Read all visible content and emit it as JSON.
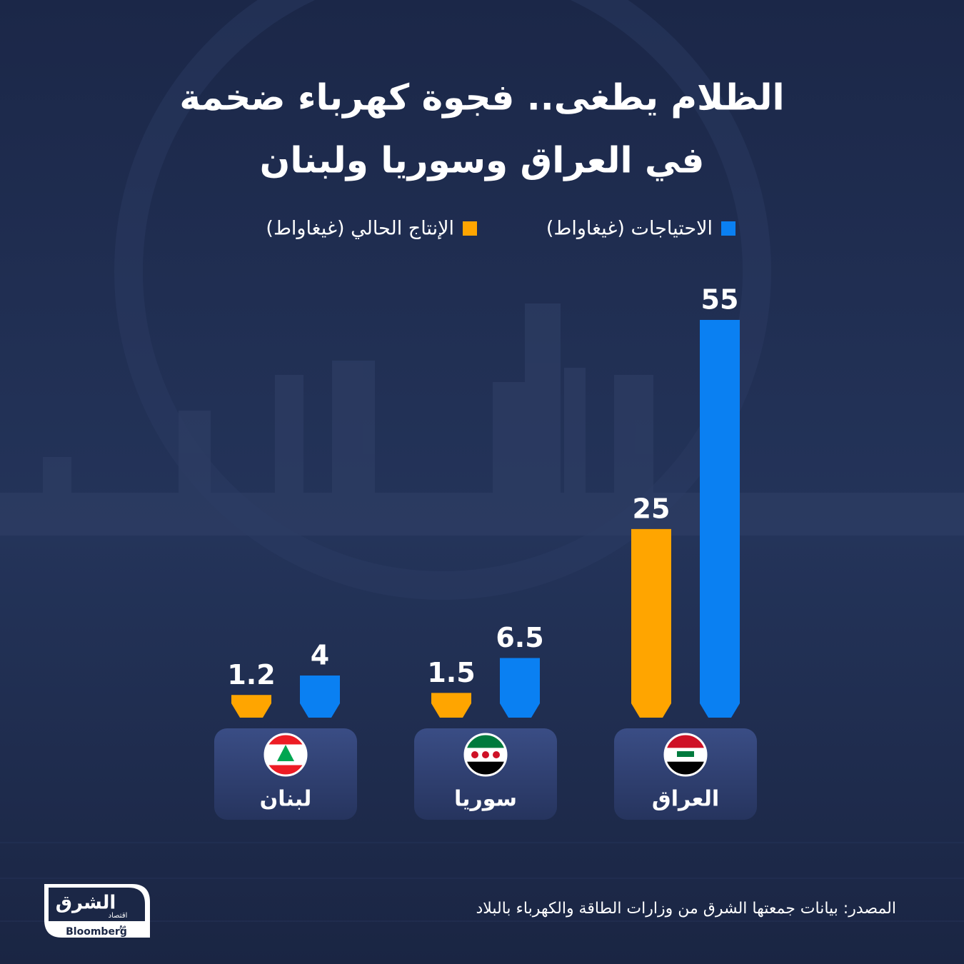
{
  "chart_data": {
    "type": "bar",
    "title": [
      "الظلام يطغى.. فجوة كهرباء ضخمة",
      "في العراق وسوريا ولبنان"
    ],
    "categories": [
      "العراق",
      "سوريا",
      "لبنان"
    ],
    "series": [
      {
        "name": "الاحتياجات (غيغاواط)",
        "color": "#0a80f2",
        "values": [
          55,
          6.5,
          4
        ]
      },
      {
        "name": "الإنتاج الحالي (غيغاواط)",
        "color": "#ffa500",
        "values": [
          25,
          1.5,
          1.2
        ]
      }
    ],
    "source": "المصدر: بيانات جمعتها الشرق من وزارات الطاقة والكهرباء بالبلاد",
    "logo": {
      "name": "الشرق",
      "sub": "اقتصاد",
      "with": "مع",
      "partner": "Bloomberg"
    }
  }
}
